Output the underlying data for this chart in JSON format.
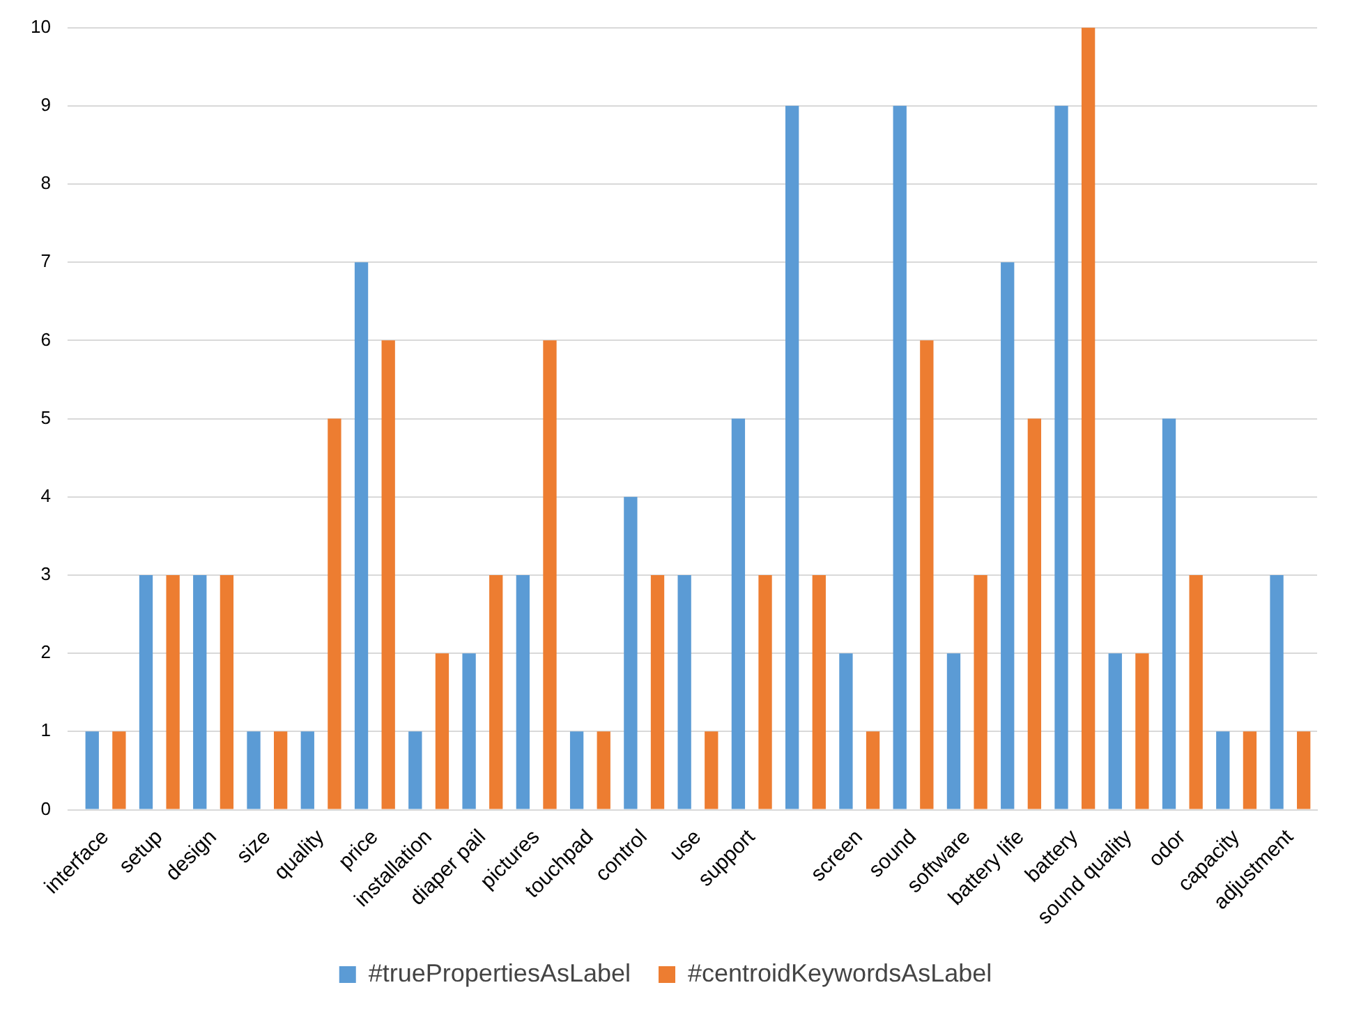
{
  "chart_data": {
    "type": "bar",
    "categories": [
      "interface",
      "setup",
      "design",
      "size",
      "quality",
      "price",
      "installation",
      "diaper pail",
      "pictures",
      "touchpad",
      "control",
      "use",
      "support",
      null,
      "screen",
      "sound",
      "software",
      "battery life",
      "battery",
      "sound quality",
      "odor",
      "capacity",
      "adjustment"
    ],
    "series": [
      {
        "name": "#truePropertiesAsLabel",
        "color": "#5b9bd5",
        "values": [
          1,
          3,
          3,
          1,
          1,
          7,
          1,
          2,
          3,
          1,
          4,
          3,
          5,
          9,
          2,
          9,
          2,
          7,
          9,
          2,
          5,
          1,
          3
        ]
      },
      {
        "name": "#centroidKeywordsAsLabel",
        "color": "#ed7d31",
        "values": [
          1,
          3,
          3,
          1,
          5,
          6,
          2,
          3,
          6,
          1,
          3,
          1,
          3,
          3,
          1,
          6,
          3,
          5,
          10,
          2,
          3,
          1,
          1
        ]
      }
    ],
    "ylim": [
      0,
      10
    ],
    "yticks": [
      0,
      1,
      2,
      3,
      4,
      5,
      6,
      7,
      8,
      9,
      10
    ],
    "grid": "y",
    "legend": "bottom"
  }
}
